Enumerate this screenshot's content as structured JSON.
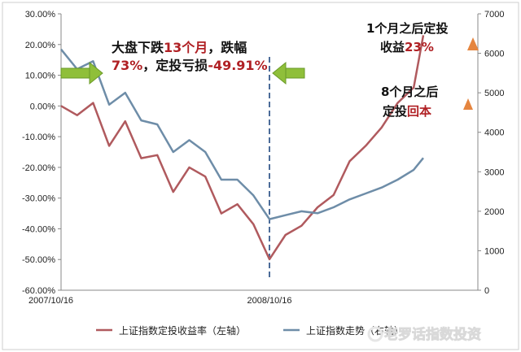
{
  "chart_data": {
    "type": "line",
    "x_tick_labels": [
      "2007/10/16",
      "2008/10/16"
    ],
    "y_left": {
      "ticks": [
        "30.00%",
        "20.00%",
        "10.00%",
        "0.00%",
        "-10.00%",
        "-20.00%",
        "-30.00%",
        "-40.00%",
        "-50.00%",
        "-60.00%"
      ],
      "range": [
        -60,
        30
      ]
    },
    "y_right": {
      "ticks": [
        "7000",
        "6000",
        "5000",
        "4000",
        "3000",
        "2000",
        "1000",
        "0"
      ],
      "range": [
        0,
        7000
      ]
    },
    "x_months": [
      0,
      26
    ],
    "divider_month": 13,
    "series": [
      {
        "name": "上证指数定投收益率（左轴）",
        "axis": "left",
        "color": "#b05a5e",
        "points": [
          [
            0,
            0
          ],
          [
            1,
            -3
          ],
          [
            2,
            1
          ],
          [
            3,
            -13
          ],
          [
            4,
            -5
          ],
          [
            5,
            -17
          ],
          [
            6,
            -16
          ],
          [
            7,
            -28
          ],
          [
            8,
            -20
          ],
          [
            9,
            -23
          ],
          [
            10,
            -35
          ],
          [
            11,
            -32
          ],
          [
            12,
            -38.5
          ],
          [
            13,
            -49.91
          ],
          [
            14,
            -42
          ],
          [
            15,
            -39
          ],
          [
            16,
            -33
          ],
          [
            17,
            -29
          ],
          [
            18,
            -18
          ],
          [
            19,
            -13
          ],
          [
            20,
            -7
          ],
          [
            21,
            1
          ],
          [
            22,
            6
          ],
          [
            22.6,
            23
          ]
        ]
      },
      {
        "name": "上证指数走势（右轴）",
        "axis": "right",
        "color": "#6e8da8",
        "points": [
          [
            0,
            6100
          ],
          [
            1,
            5600
          ],
          [
            2,
            5800
          ],
          [
            3,
            4700
          ],
          [
            4,
            5000
          ],
          [
            5,
            4300
          ],
          [
            6,
            4200
          ],
          [
            7,
            3500
          ],
          [
            8,
            3800
          ],
          [
            9,
            3500
          ],
          [
            10,
            2800
          ],
          [
            11,
            2800
          ],
          [
            12,
            2400
          ],
          [
            13,
            1800
          ],
          [
            14,
            1900
          ],
          [
            15,
            2000
          ],
          [
            16,
            1950
          ],
          [
            17,
            2100
          ],
          [
            18,
            2300
          ],
          [
            19,
            2450
          ],
          [
            20,
            2600
          ],
          [
            21,
            2800
          ],
          [
            22,
            3050
          ],
          [
            22.6,
            3350
          ]
        ]
      }
    ]
  },
  "annotations": {
    "left_part1": "大盘下跌",
    "left_part2": "13个月",
    "left_part3": "，跌幅",
    "left_part4": "73%",
    "left_part5": "，定投亏损",
    "left_part6": "-49.91%",
    "top_right_line1": "1个月之后定投",
    "top_right_line2a": "收益",
    "top_right_line2b": "23%",
    "mid_right_line1": "8个月之后",
    "mid_right_line2a": "定投",
    "mid_right_line2b": "回本"
  },
  "legend": {
    "series1": "上证指数定投收益率（左轴）",
    "series2": "上证指数走势（右轴）"
  },
  "watermark": "老罗话指数投资",
  "colors": {
    "red_text": "#b02024",
    "arrow_green": "#8fbf3a",
    "orange_marker": "#e5853f",
    "divider": "#4c6c99"
  }
}
